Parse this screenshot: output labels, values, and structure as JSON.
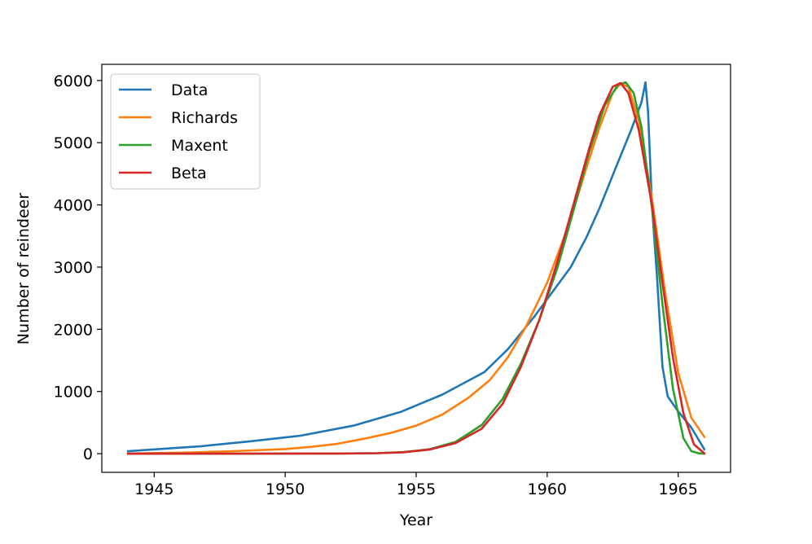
{
  "chart_data": {
    "type": "line",
    "title": "",
    "xlabel": "Year",
    "ylabel": "Number of reindeer",
    "xlim": [
      1943.0,
      1967.0
    ],
    "ylim": [
      -300,
      6260
    ],
    "xticks": [
      1945,
      1950,
      1955,
      1960,
      1965
    ],
    "yticks": [
      0,
      1000,
      2000,
      3000,
      4000,
      5000,
      6000
    ],
    "legend_position": "top-left",
    "grid": false,
    "series": [
      {
        "name": "Data",
        "color": "#1f77b4",
        "x": [
          1944,
          1946.8,
          1948.7,
          1950.6,
          1952.6,
          1954.4,
          1956.0,
          1957.6,
          1958.5,
          1959.5,
          1960.2,
          1960.9,
          1961.5,
          1962.0,
          1962.6,
          1963.2,
          1963.6,
          1963.75,
          1963.85,
          1964.0,
          1964.2,
          1964.4,
          1964.6,
          1965.0,
          1965.5,
          1966.0
        ],
        "y": [
          40,
          120,
          200,
          290,
          450,
          670,
          950,
          1310,
          1680,
          2200,
          2600,
          3000,
          3480,
          3950,
          4580,
          5200,
          5650,
          5970,
          5500,
          4000,
          2800,
          1400,
          920,
          680,
          420,
          70
        ]
      },
      {
        "name": "Richards",
        "color": "#ff7f0e",
        "x": [
          1944,
          1946,
          1948,
          1950,
          1951,
          1952,
          1953,
          1954,
          1955,
          1956,
          1957,
          1957.8,
          1958.5,
          1959.2,
          1960.0,
          1960.8,
          1961.5,
          1962.0,
          1962.5,
          1962.8,
          1963.1,
          1963.5,
          1964.0,
          1964.5,
          1965.0,
          1965.5,
          1966.0
        ],
        "y": [
          2,
          15,
          40,
          75,
          110,
          160,
          240,
          330,
          450,
          630,
          900,
          1180,
          1550,
          2050,
          2750,
          3650,
          4600,
          5250,
          5800,
          5950,
          5900,
          5350,
          4100,
          2600,
          1300,
          580,
          270
        ]
      },
      {
        "name": "Maxent",
        "color": "#2ca02c",
        "x": [
          1944,
          1948,
          1952,
          1953.5,
          1954.5,
          1955.5,
          1956.5,
          1957.5,
          1958.3,
          1959.0,
          1959.7,
          1960.4,
          1961.0,
          1961.6,
          1962.2,
          1962.7,
          1963.0,
          1963.3,
          1963.6,
          1964.0,
          1964.4,
          1964.8,
          1965.2,
          1965.5,
          1965.8,
          1966.0
        ],
        "y": [
          0,
          0,
          2,
          8,
          25,
          70,
          190,
          460,
          880,
          1450,
          2150,
          3000,
          3900,
          4850,
          5600,
          5930,
          5970,
          5800,
          5250,
          3950,
          2400,
          1050,
          250,
          40,
          5,
          0
        ]
      },
      {
        "name": "Beta",
        "color": "#d62728",
        "x": [
          1944,
          1948,
          1952,
          1953.5,
          1954.5,
          1955.5,
          1956.5,
          1957.5,
          1958.3,
          1959.0,
          1959.7,
          1960.4,
          1961.0,
          1961.6,
          1962.0,
          1962.5,
          1962.8,
          1963.1,
          1963.5,
          1964.0,
          1964.4,
          1964.8,
          1965.2,
          1965.6,
          1966.0
        ],
        "y": [
          0,
          0,
          2,
          8,
          22,
          65,
          170,
          400,
          800,
          1400,
          2150,
          3100,
          4000,
          4900,
          5450,
          5900,
          5960,
          5800,
          5200,
          4000,
          2750,
          1550,
          650,
          150,
          5
        ]
      }
    ]
  }
}
